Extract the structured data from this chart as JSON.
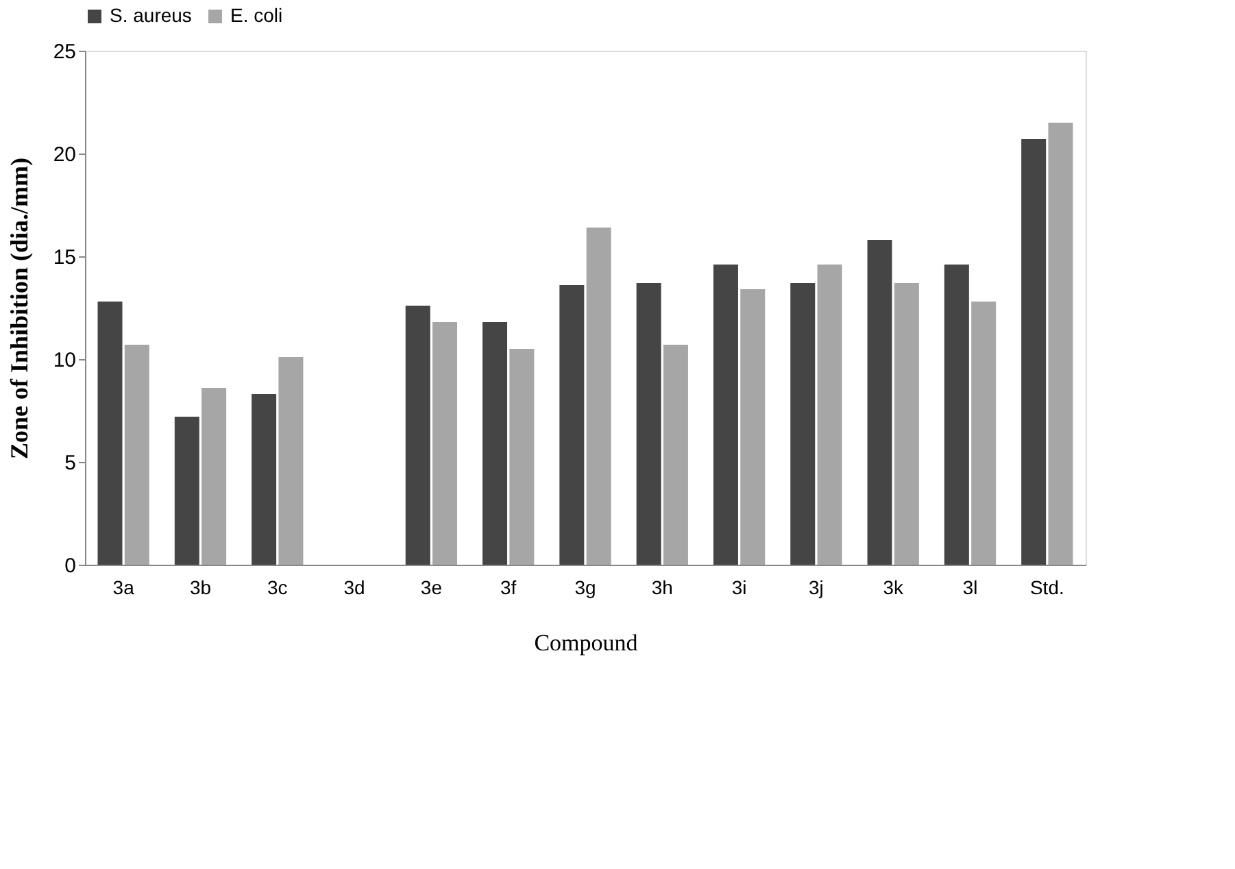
{
  "chart_data": {
    "type": "bar",
    "xlabel": "Compound",
    "ylabel": "Zone of Inhibition (dia./mm)",
    "categories": [
      "3a",
      "3b",
      "3c",
      "3d",
      "3e",
      "3f",
      "3g",
      "3h",
      "3i",
      "3j",
      "3k",
      "3l",
      "Std."
    ],
    "series": [
      {
        "name": "S. aureus",
        "color": "#454545",
        "values": [
          12.8,
          7.2,
          8.3,
          0,
          12.6,
          11.8,
          13.6,
          13.7,
          14.6,
          13.7,
          15.8,
          14.6,
          20.7
        ]
      },
      {
        "name": "E. coli",
        "color": "#a6a6a6",
        "values": [
          10.7,
          8.6,
          10.1,
          0,
          11.8,
          10.5,
          16.4,
          10.7,
          13.4,
          14.6,
          13.7,
          12.8,
          21.5
        ]
      }
    ],
    "ylim": [
      0,
      25
    ],
    "yticks": [
      0,
      5,
      10,
      15,
      20,
      25
    ],
    "grid": false,
    "legend": "top"
  }
}
